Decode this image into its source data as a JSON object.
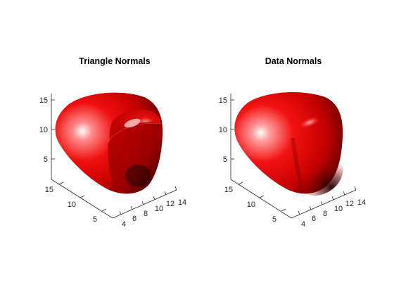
{
  "figure": {
    "background": "#ffffff"
  },
  "chart_data": [
    {
      "type": "surface",
      "title": "Triangle Normals",
      "shading": "faceted-lighting",
      "face_color": "#e00000",
      "x_ticks": [
        "4",
        "6",
        "8",
        "10",
        "12",
        "14"
      ],
      "y_ticks": [
        "5",
        "10",
        "15"
      ],
      "z_ticks": [
        "5",
        "10",
        "15"
      ],
      "xlabel": "",
      "ylabel": "",
      "zlabel": "",
      "grid": false
    },
    {
      "type": "surface",
      "title": "Data Normals",
      "shading": "smooth-lighting",
      "face_color": "#e00000",
      "x_ticks": [
        "4",
        "6",
        "8",
        "10",
        "12",
        "14"
      ],
      "y_ticks": [
        "5",
        "10",
        "15"
      ],
      "z_ticks": [
        "5",
        "10",
        "15"
      ],
      "xlabel": "",
      "ylabel": "",
      "zlabel": "",
      "grid": false
    }
  ]
}
